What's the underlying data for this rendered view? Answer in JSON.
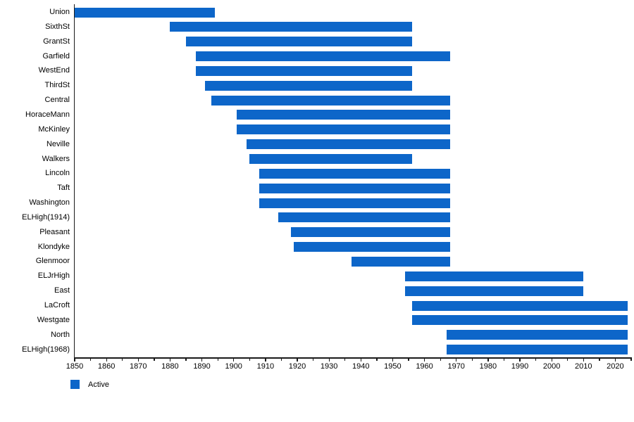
{
  "chart_data": {
    "type": "bar",
    "variant": "horizontal-range-timeline",
    "title": "",
    "xlabel": "",
    "ylabel": "",
    "xlim": [
      1850,
      2025
    ],
    "x_major_ticks": [
      1850,
      1860,
      1870,
      1880,
      1890,
      1900,
      1910,
      1920,
      1930,
      1940,
      1950,
      1960,
      1970,
      1980,
      1990,
      2000,
      2010,
      2020
    ],
    "x_minor_tick_step": 5,
    "grid": false,
    "bar_color": "#0d66c9",
    "legend": {
      "position": "bottom-left",
      "items": [
        {
          "label": "Active",
          "color": "#0d66c9"
        }
      ]
    },
    "bars": [
      {
        "label": "Union",
        "start": 1850,
        "end": 1894
      },
      {
        "label": "SixthSt",
        "start": 1880,
        "end": 1956
      },
      {
        "label": "GrantSt",
        "start": 1885,
        "end": 1956
      },
      {
        "label": "Garfield",
        "start": 1888,
        "end": 1968
      },
      {
        "label": "WestEnd",
        "start": 1888,
        "end": 1956
      },
      {
        "label": "ThirdSt",
        "start": 1891,
        "end": 1956
      },
      {
        "label": "Central",
        "start": 1893,
        "end": 1968
      },
      {
        "label": "HoraceMann",
        "start": 1901,
        "end": 1968
      },
      {
        "label": "McKinley",
        "start": 1901,
        "end": 1968
      },
      {
        "label": "Neville",
        "start": 1904,
        "end": 1968
      },
      {
        "label": "Walkers",
        "start": 1905,
        "end": 1956
      },
      {
        "label": "Lincoln",
        "start": 1908,
        "end": 1968
      },
      {
        "label": "Taft",
        "start": 1908,
        "end": 1968
      },
      {
        "label": "Washington",
        "start": 1908,
        "end": 1968
      },
      {
        "label": "ELHigh(1914)",
        "start": 1914,
        "end": 1968
      },
      {
        "label": "Pleasant",
        "start": 1918,
        "end": 1968
      },
      {
        "label": "Klondyke",
        "start": 1919,
        "end": 1968
      },
      {
        "label": "Glenmoor",
        "start": 1937,
        "end": 1968
      },
      {
        "label": "ELJrHigh",
        "start": 1954,
        "end": 2010
      },
      {
        "label": "East",
        "start": 1954,
        "end": 2010
      },
      {
        "label": "LaCroft",
        "start": 1956,
        "end": 2024
      },
      {
        "label": "Westgate",
        "start": 1956,
        "end": 2024
      },
      {
        "label": "North",
        "start": 1967,
        "end": 2024
      },
      {
        "label": "ELHigh(1968)",
        "start": 1967,
        "end": 2024
      }
    ]
  }
}
